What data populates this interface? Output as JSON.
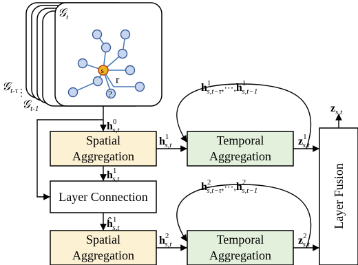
{
  "graph_stack": {
    "front_label": "𝒢",
    "front_sub": "t",
    "back_label_1": "𝒢",
    "back_sub_1": "t-τ",
    "back_label_2": "𝒢",
    "back_sub_2": "t-1",
    "dots": "⋮",
    "center_node": "s",
    "edge_label": "r",
    "unknown_node": "?"
  },
  "boxes": {
    "spatial_1": [
      "Spatial",
      "Aggregation"
    ],
    "temporal_1": [
      "Temporal",
      "Aggregation"
    ],
    "layer_connection": "Layer Connection",
    "spatial_2": [
      "Spatial",
      "Aggregation"
    ],
    "temporal_2": [
      "Temporal",
      "Aggregation"
    ],
    "layer_fusion": "Layer Fusion"
  },
  "labels": {
    "h0": {
      "base": "h",
      "sup": "0",
      "sub": "s,t"
    },
    "h1_a": {
      "base": "h",
      "sup": "1",
      "sub": "s,t"
    },
    "h1_b": {
      "base": "h",
      "sup": "1",
      "sub": "s,t"
    },
    "hhat1": {
      "base": "ĥ",
      "sup": "1",
      "sub": "s,t"
    },
    "h2": {
      "base": "h",
      "sup": "2",
      "sub": "s,t"
    },
    "z1": {
      "base": "z",
      "sup": "1",
      "sub": "s,t"
    },
    "z2": {
      "base": "z",
      "sup": "2",
      "sub": "s,t"
    },
    "zst": {
      "base": "z",
      "sup": "",
      "sub": "s,t"
    },
    "hist1": {
      "base": "h",
      "sup": "1",
      "sub1": "s,t−τ",
      "mid": ",⋯,",
      "sub2": "s,t−1"
    },
    "hist2": {
      "base": "h",
      "sup": "2",
      "sub1": "s,t−τ",
      "mid": ",⋯,",
      "sub2": "s,t−1"
    }
  },
  "colors": {
    "spatial_fill": "#fdf1d3",
    "temporal_fill": "#e3f0dc",
    "node_fill": "#c7d6ef",
    "node_stroke": "#3b5998",
    "center_fill": "#f2b320",
    "edge": "#4a7bb7"
  }
}
